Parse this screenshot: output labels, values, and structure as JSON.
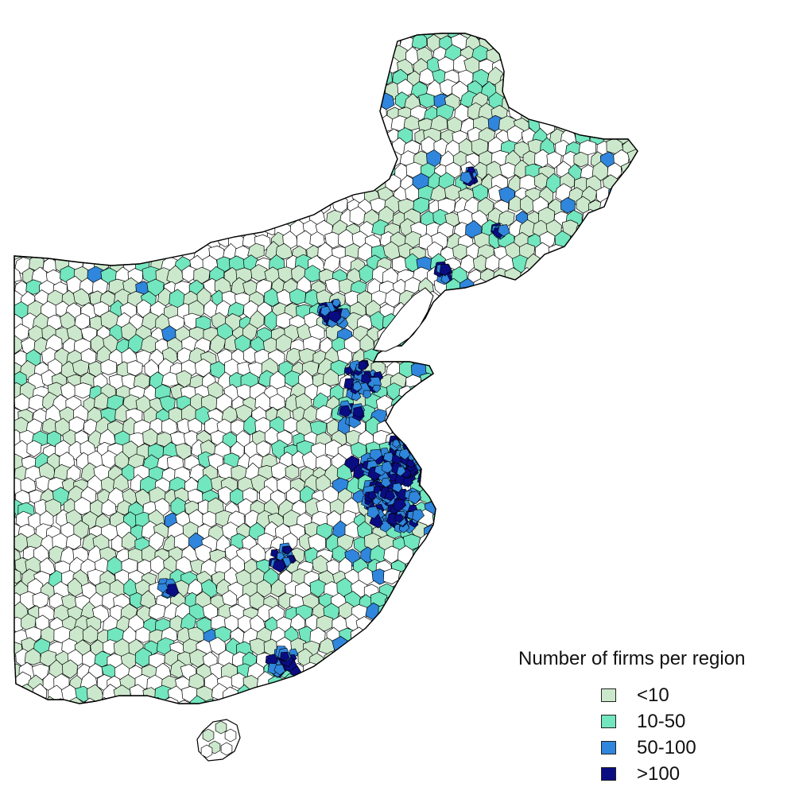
{
  "legend": {
    "title": "Number of firms per region",
    "items": [
      {
        "label": "<10",
        "color": "#cce8cc",
        "key": "lt10"
      },
      {
        "label": "10-50",
        "color": "#72e6bf",
        "key": "10to50"
      },
      {
        "label": "50-100",
        "color": "#2f86dc",
        "key": "50to100"
      },
      {
        "label": ">100",
        "color": "#0a0c82",
        "key": "gt100"
      }
    ]
  },
  "map": {
    "boundary_color": "#000000",
    "no_data_color": "#ffffff"
  }
}
